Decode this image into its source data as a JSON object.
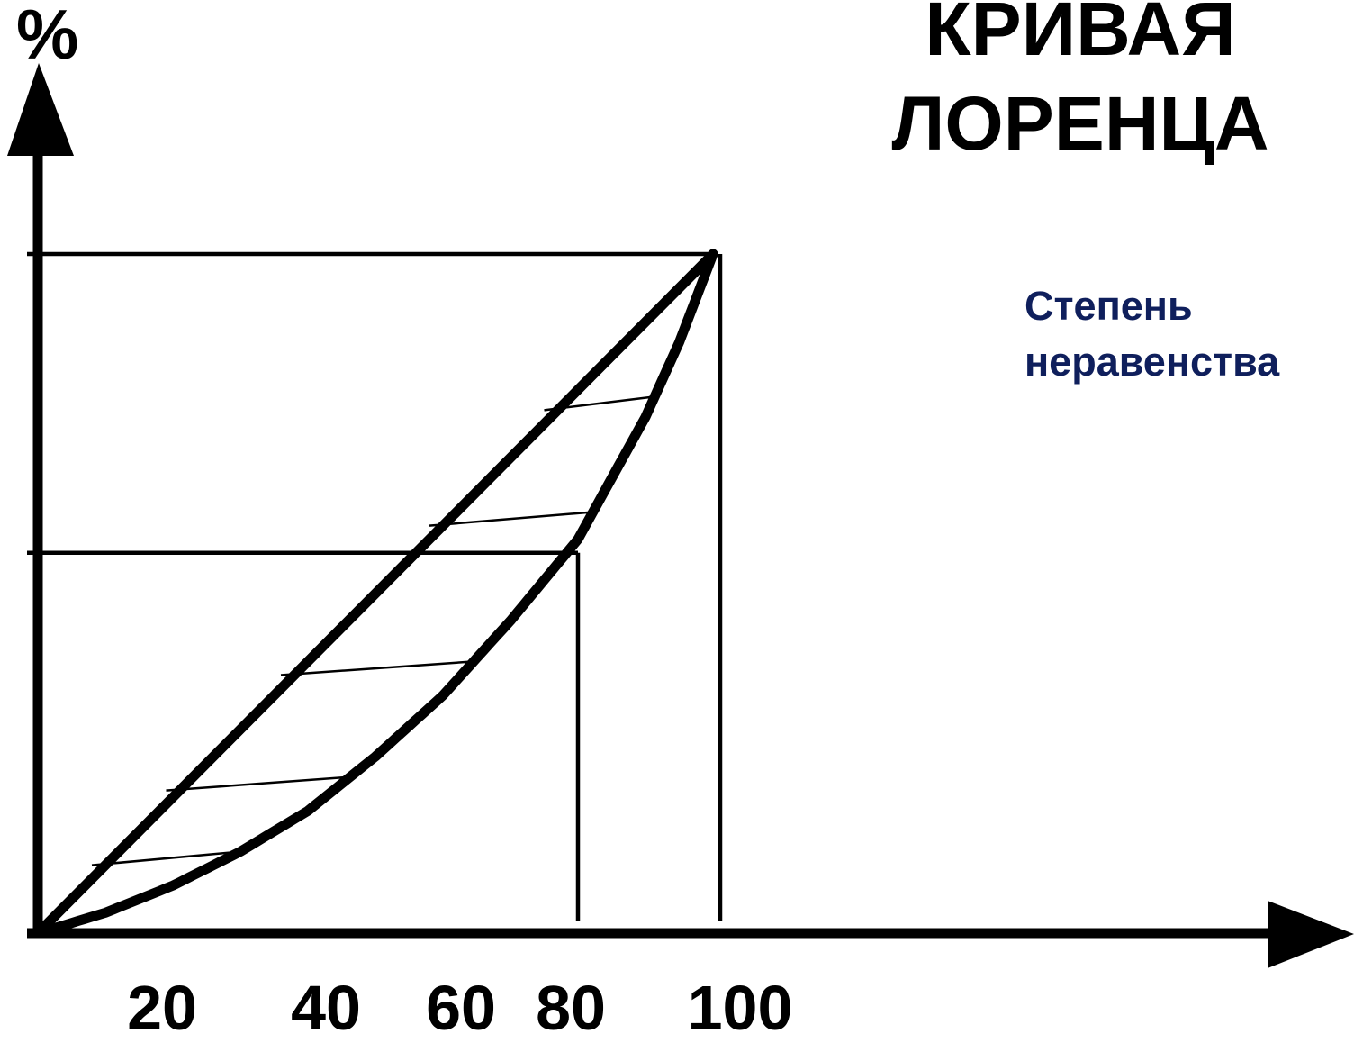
{
  "title_line1": "КРИВАЯ",
  "title_line2": "ЛОРЕНЦА",
  "annotation_line1": "Степень",
  "annotation_line2": "неравенства",
  "y_axis_label": "%",
  "chart_data": {
    "type": "line",
    "title": "КРИВАЯ ЛОРЕНЦА",
    "ylabel": "%",
    "xlabel": "",
    "x_ticks": [
      "20",
      "40",
      "60",
      "80",
      "100"
    ],
    "x_tick_values": [
      20,
      40,
      60,
      80,
      100
    ],
    "xlim": [
      0,
      100
    ],
    "ylim": [
      0,
      100
    ],
    "grid": false,
    "series": [
      {
        "x": [
          0,
          100
        ],
        "y": [
          0,
          100
        ]
      },
      {
        "x": [
          0,
          10,
          20,
          30,
          40,
          50,
          60,
          70,
          80,
          90,
          95,
          100
        ],
        "y": [
          0,
          3,
          7,
          12,
          18,
          26,
          35,
          46,
          58,
          76,
          87,
          100
        ]
      }
    ],
    "reference_lines": [
      {
        "y": 100,
        "x_end": 100
      },
      {
        "y": 56,
        "x_end": 80
      },
      {
        "x": 80,
        "y_end": 56
      },
      {
        "x": 100,
        "y_end": 100
      }
    ],
    "shaded_region_annotation": "Степень неравенства"
  }
}
